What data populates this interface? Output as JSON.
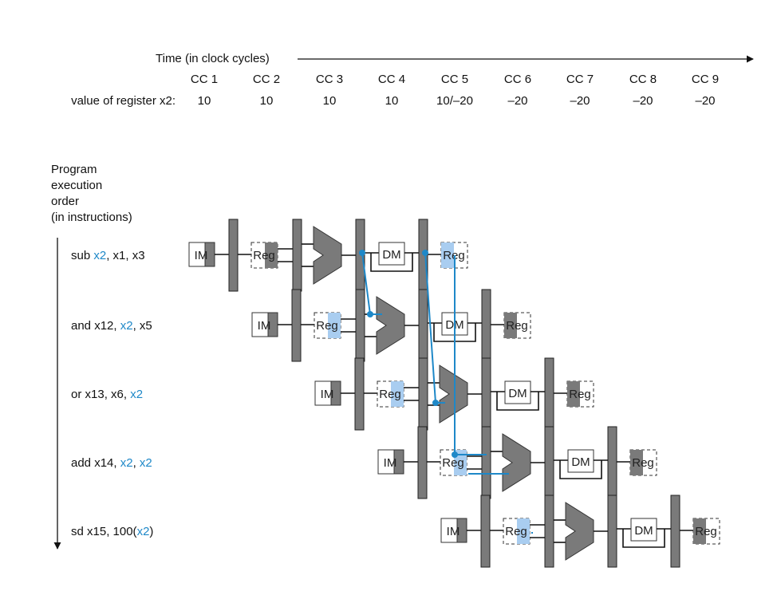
{
  "header": {
    "time_label": "Time (in clock cycles)",
    "cycles": [
      "CC 1",
      "CC 2",
      "CC 3",
      "CC 4",
      "CC 5",
      "CC 6",
      "CC 7",
      "CC 8",
      "CC 9"
    ],
    "value_label": "value of register x2:",
    "values": [
      "10",
      "10",
      "10",
      "10",
      "10/–20",
      "–20",
      "–20",
      "–20",
      "–20"
    ]
  },
  "order_label": [
    "Program",
    "execution",
    "order",
    "(in instructions)"
  ],
  "instructions": [
    {
      "name": "sub",
      "parts": [
        {
          "text": "sub ",
          "hl": false
        },
        {
          "text": "x2",
          "hl": true
        },
        {
          "text": ", x1, x3",
          "hl": false
        }
      ]
    },
    {
      "name": "and",
      "parts": [
        {
          "text": "and x12, ",
          "hl": false
        },
        {
          "text": "x2",
          "hl": true
        },
        {
          "text": ", x5",
          "hl": false
        }
      ]
    },
    {
      "name": "or",
      "parts": [
        {
          "text": "or x13, x6, ",
          "hl": false
        },
        {
          "text": "x2",
          "hl": true
        }
      ]
    },
    {
      "name": "add",
      "parts": [
        {
          "text": "add x14, ",
          "hl": false
        },
        {
          "text": "x2",
          "hl": true
        },
        {
          "text": ", ",
          "hl": false
        },
        {
          "text": "x2",
          "hl": true
        }
      ]
    },
    {
      "name": "sd",
      "parts": [
        {
          "text": "sd x15, 100(",
          "hl": false
        },
        {
          "text": "x2",
          "hl": true
        },
        {
          "text": ")",
          "hl": false
        }
      ]
    }
  ],
  "units": {
    "im": "IM",
    "reg": "Reg",
    "dm": "DM"
  },
  "colors": {
    "highlight": "#1e88c8",
    "reg_fill": "#a9cdf0",
    "unit_dark": "#7a7a7a",
    "text": "#111111"
  }
}
